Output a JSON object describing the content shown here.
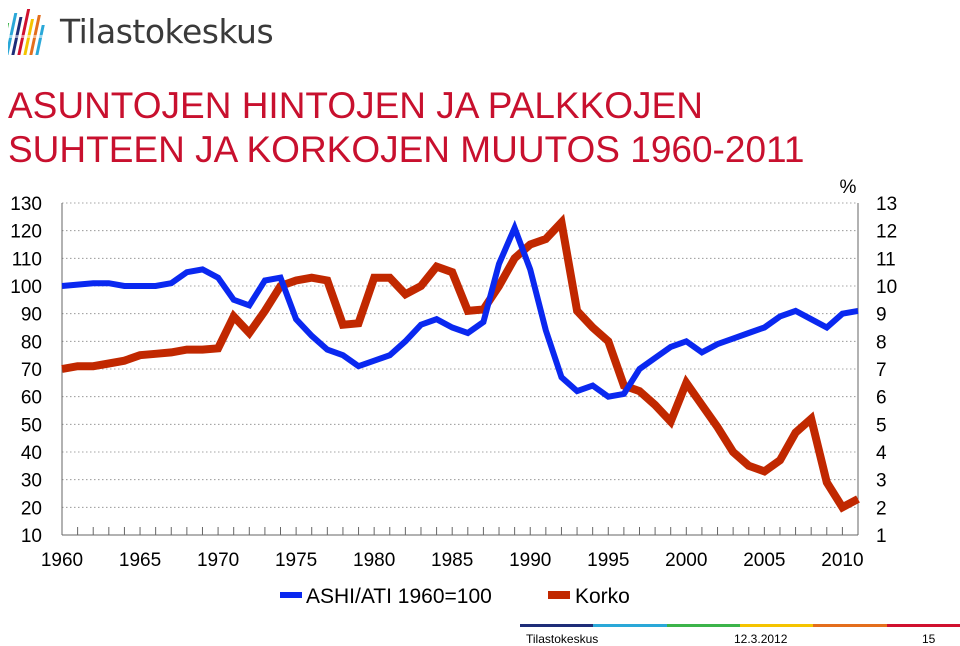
{
  "header": {
    "logo_text": "Tilastokeskus",
    "title_line1": "ASUNTOJEN HINTOJEN JA PALKKOJEN",
    "title_line2": "SUHTEEN JA KORKOJEN MUUTOS 1960-2011"
  },
  "colors": {
    "title": "#c8102e",
    "series_ashi": "#0a28f0",
    "series_korko": "#c12800",
    "footer_bars": [
      "#1e2d78",
      "#2aa8d8",
      "#3cb44a",
      "#f5c400",
      "#e46e1c",
      "#d0102e"
    ]
  },
  "chart_data": {
    "type": "line",
    "x_ticks": [
      "1960",
      "1965",
      "1970",
      "1975",
      "1980",
      "1985",
      "1990",
      "1995",
      "2000",
      "2005",
      "2010"
    ],
    "xlim": [
      1960,
      2011
    ],
    "y_left": {
      "ticks": [
        "130",
        "120",
        "110",
        "100",
        "90",
        "80",
        "70",
        "60",
        "50",
        "40",
        "30",
        "20",
        "10"
      ],
      "ylim": [
        10,
        130
      ]
    },
    "y_right": {
      "unit": "%",
      "ticks": [
        "13",
        "12",
        "11",
        "10",
        "9",
        "8",
        "7",
        "6",
        "5",
        "4",
        "3",
        "2",
        "1"
      ],
      "ylim": [
        1,
        13
      ]
    },
    "grid": "horizontal-dotted",
    "legend_placement": "bottom-center",
    "series": [
      {
        "name": "ASHI/ATI 1960=100",
        "axis": "left",
        "x": [
          1960,
          1961,
          1962,
          1963,
          1964,
          1965,
          1966,
          1967,
          1968,
          1969,
          1970,
          1971,
          1972,
          1973,
          1974,
          1975,
          1976,
          1977,
          1978,
          1979,
          1980,
          1981,
          1982,
          1983,
          1984,
          1985,
          1986,
          1987,
          1988,
          1989,
          1990,
          1991,
          1992,
          1993,
          1994,
          1995,
          1996,
          1997,
          1998,
          1999,
          2000,
          2001,
          2002,
          2003,
          2004,
          2005,
          2006,
          2007,
          2008,
          2009,
          2010,
          2011
        ],
        "values": [
          100,
          100.5,
          101,
          101,
          100,
          100,
          100,
          101,
          105,
          106,
          103,
          95,
          93,
          102,
          103,
          88,
          82,
          77,
          75,
          71,
          73,
          75,
          80,
          86,
          88,
          85,
          83,
          87,
          108,
          121,
          106,
          84,
          67,
          62,
          64,
          60,
          61,
          70,
          74,
          78,
          80,
          76,
          79,
          81,
          83,
          85,
          89,
          91,
          88,
          85,
          90,
          91
        ]
      },
      {
        "name": "Korko",
        "axis": "right",
        "x": [
          1960,
          1961,
          1962,
          1963,
          1964,
          1965,
          1966,
          1967,
          1968,
          1969,
          1970,
          1971,
          1972,
          1973,
          1974,
          1975,
          1976,
          1977,
          1978,
          1979,
          1980,
          1981,
          1982,
          1983,
          1984,
          1985,
          1986,
          1987,
          1988,
          1989,
          1990,
          1991,
          1992,
          1993,
          1994,
          1995,
          1996,
          1997,
          1998,
          1999,
          2000,
          2001,
          2002,
          2003,
          2004,
          2005,
          2006,
          2007,
          2008,
          2009,
          2010,
          2011
        ],
        "values": [
          7.0,
          7.1,
          7.1,
          7.2,
          7.3,
          7.5,
          7.55,
          7.6,
          7.7,
          7.7,
          7.75,
          8.9,
          8.3,
          9.1,
          10.0,
          10.2,
          10.3,
          10.2,
          8.6,
          8.65,
          10.3,
          10.3,
          9.7,
          10.0,
          10.7,
          10.5,
          9.1,
          9.15,
          10.0,
          11.0,
          11.5,
          11.7,
          12.3,
          9.1,
          8.5,
          8.0,
          6.4,
          6.2,
          5.7,
          5.1,
          6.5,
          5.7,
          4.9,
          4.0,
          3.5,
          3.3,
          3.7,
          4.7,
          5.2,
          2.9,
          2.0,
          2.3
        ]
      }
    ]
  },
  "footer": {
    "org": "Tilastokeskus",
    "date": "12.3.2012",
    "page": "15"
  }
}
